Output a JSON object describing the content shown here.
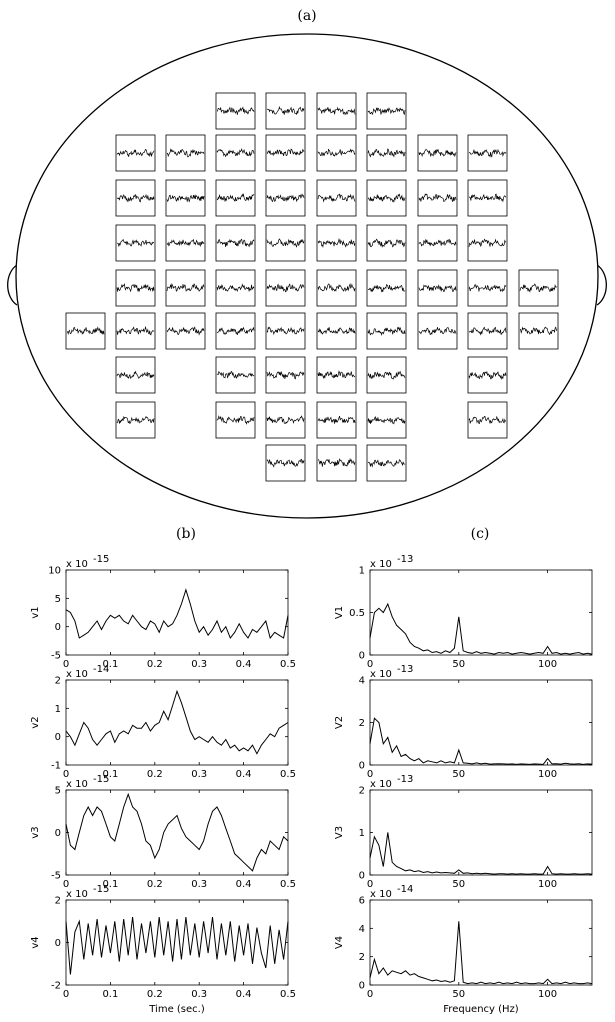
{
  "figure": {
    "panel_a": "(a)",
    "panel_b": "(b)",
    "panel_c": "(c)"
  },
  "chart_data": [
    {
      "type": "line",
      "ylabel": "v1",
      "multiplier": {
        "base": "x 10",
        "exponent": "-15"
      },
      "color": "#000",
      "x": [
        0,
        0.01,
        0.02,
        0.03,
        0.04,
        0.05,
        0.06,
        0.07,
        0.08,
        0.09,
        0.1,
        0.11,
        0.12,
        0.13,
        0.14,
        0.15,
        0.16,
        0.17,
        0.18,
        0.19,
        0.2,
        0.21,
        0.22,
        0.23,
        0.24,
        0.25,
        0.26,
        0.27,
        0.28,
        0.29,
        0.3,
        0.31,
        0.32,
        0.33,
        0.34,
        0.35,
        0.36,
        0.37,
        0.38,
        0.39,
        0.4,
        0.41,
        0.42,
        0.43,
        0.44,
        0.45,
        0.46,
        0.47,
        0.48,
        0.49,
        0.5
      ],
      "values": [
        3,
        2.5,
        1,
        -2,
        -1.5,
        -1,
        0,
        1,
        -0.5,
        1,
        2,
        1.5,
        2,
        1,
        0.5,
        2,
        1,
        0,
        -0.5,
        1,
        0.5,
        -1,
        1,
        0,
        0.5,
        2,
        4,
        6.5,
        4,
        1,
        -1,
        0,
        -1.5,
        -0.5,
        1,
        -1,
        0,
        -2,
        -1,
        0.5,
        -1,
        -2,
        -0.5,
        -1,
        0,
        1,
        -2,
        -1,
        -1.5,
        -2,
        2
      ],
      "xlim": [
        0,
        0.5
      ],
      "xticks": [
        0,
        0.1,
        0.2,
        0.3,
        0.4,
        0.5
      ],
      "ylim": [
        -5,
        10
      ],
      "yticks": [
        -5,
        0,
        5,
        10
      ]
    },
    {
      "type": "line",
      "ylabel": "v2",
      "multiplier": {
        "base": "x 10",
        "exponent": "-14"
      },
      "color": "#000",
      "x": [
        0,
        0.01,
        0.02,
        0.03,
        0.04,
        0.05,
        0.06,
        0.07,
        0.08,
        0.09,
        0.1,
        0.11,
        0.12,
        0.13,
        0.14,
        0.15,
        0.16,
        0.17,
        0.18,
        0.19,
        0.2,
        0.21,
        0.22,
        0.23,
        0.24,
        0.25,
        0.26,
        0.27,
        0.28,
        0.29,
        0.3,
        0.31,
        0.32,
        0.33,
        0.34,
        0.35,
        0.36,
        0.37,
        0.38,
        0.39,
        0.4,
        0.41,
        0.42,
        0.43,
        0.44,
        0.45,
        0.46,
        0.47,
        0.48,
        0.49,
        0.5
      ],
      "values": [
        0.2,
        0,
        -0.3,
        0.1,
        0.5,
        0.3,
        -0.1,
        -0.3,
        -0.1,
        0.1,
        0.2,
        -0.2,
        0.1,
        0.2,
        0.1,
        0.4,
        0.3,
        0.3,
        0.5,
        0.2,
        0.4,
        0.5,
        0.9,
        0.6,
        1.1,
        1.6,
        1.2,
        0.7,
        0.2,
        -0.1,
        0,
        -0.1,
        -0.2,
        0,
        -0.2,
        -0.3,
        -0.1,
        -0.4,
        -0.3,
        -0.5,
        -0.4,
        -0.5,
        -0.3,
        -0.6,
        -0.3,
        -0.1,
        0.1,
        0,
        0.3,
        0.4,
        0.5
      ],
      "xlim": [
        0,
        0.5
      ],
      "xticks": [
        0,
        0.1,
        0.2,
        0.3,
        0.4,
        0.5
      ],
      "ylim": [
        -1,
        2
      ],
      "yticks": [
        -1,
        0,
        1,
        2
      ]
    },
    {
      "type": "line",
      "ylabel": "v3",
      "multiplier": {
        "base": "x 10",
        "exponent": "-15"
      },
      "color": "#000",
      "x": [
        0,
        0.01,
        0.02,
        0.03,
        0.04,
        0.05,
        0.06,
        0.07,
        0.08,
        0.09,
        0.1,
        0.11,
        0.12,
        0.13,
        0.14,
        0.15,
        0.16,
        0.17,
        0.18,
        0.19,
        0.2,
        0.21,
        0.22,
        0.23,
        0.24,
        0.25,
        0.26,
        0.27,
        0.28,
        0.29,
        0.3,
        0.31,
        0.32,
        0.33,
        0.34,
        0.35,
        0.36,
        0.37,
        0.38,
        0.39,
        0.4,
        0.41,
        0.42,
        0.43,
        0.44,
        0.45,
        0.46,
        0.47,
        0.48,
        0.49,
        0.5
      ],
      "values": [
        1,
        -1.5,
        -2,
        0,
        2,
        3,
        2,
        3,
        2.5,
        1,
        -0.5,
        -1,
        1,
        3,
        4.5,
        3,
        2.5,
        1,
        -1,
        -1.5,
        -3,
        -2,
        0,
        1,
        1.5,
        2,
        0.5,
        -0.5,
        -1,
        -1.5,
        -2,
        -1,
        1,
        2.5,
        3,
        2,
        0.5,
        -1,
        -2.5,
        -3,
        -3.5,
        -4,
        -4.5,
        -3,
        -2,
        -2.5,
        -1,
        -1.5,
        -2,
        -0.5,
        -1
      ],
      "xlim": [
        0,
        0.5
      ],
      "xticks": [
        0,
        0.1,
        0.2,
        0.3,
        0.4,
        0.5
      ],
      "ylim": [
        -5,
        5
      ],
      "yticks": [
        -5,
        0,
        5
      ]
    },
    {
      "type": "line",
      "ylabel": "v4",
      "xlabel": "Time (sec.)",
      "multiplier": {
        "base": "x 10",
        "exponent": "-15"
      },
      "color": "#000",
      "x": [
        0,
        0.01,
        0.02,
        0.03,
        0.04,
        0.05,
        0.06,
        0.07,
        0.08,
        0.09,
        0.1,
        0.11,
        0.12,
        0.13,
        0.14,
        0.15,
        0.16,
        0.17,
        0.18,
        0.19,
        0.2,
        0.21,
        0.22,
        0.23,
        0.24,
        0.25,
        0.26,
        0.27,
        0.28,
        0.29,
        0.3,
        0.31,
        0.32,
        0.33,
        0.34,
        0.35,
        0.36,
        0.37,
        0.38,
        0.39,
        0.4,
        0.41,
        0.42,
        0.43,
        0.44,
        0.45,
        0.46,
        0.47,
        0.48,
        0.49,
        0.5
      ],
      "values": [
        1,
        -1.5,
        0.5,
        1,
        -0.8,
        0.9,
        -0.6,
        1.1,
        -0.7,
        0.8,
        -0.5,
        1,
        -0.9,
        1.1,
        -0.6,
        1.2,
        -0.8,
        0.9,
        -0.5,
        1,
        -0.7,
        1.2,
        -0.6,
        1,
        -0.9,
        1.1,
        -0.8,
        1.2,
        -0.6,
        0.9,
        -0.7,
        1,
        -0.5,
        1.2,
        -0.8,
        0.9,
        -0.6,
        1,
        -0.9,
        0.8,
        -0.6,
        0.9,
        -1,
        0.7,
        -0.5,
        -1.2,
        0.8,
        -1,
        0.6,
        -0.8,
        1
      ],
      "xlim": [
        0,
        0.5
      ],
      "xticks": [
        0,
        0.1,
        0.2,
        0.3,
        0.4,
        0.5
      ],
      "ylim": [
        -2,
        2
      ],
      "yticks": [
        -2,
        0,
        2
      ]
    },
    {
      "type": "line",
      "ylabel": "V1",
      "multiplier": {
        "base": "x 10",
        "exponent": "-13"
      },
      "color": "#000",
      "x": [
        0,
        2.5,
        5,
        7.5,
        10,
        12.5,
        15,
        17.5,
        20,
        22.5,
        25,
        27.5,
        30,
        32.5,
        35,
        37.5,
        40,
        42.5,
        45,
        47.5,
        50,
        52.5,
        55,
        57.5,
        60,
        62.5,
        65,
        67.5,
        70,
        72.5,
        75,
        77.5,
        80,
        82.5,
        85,
        87.5,
        90,
        92.5,
        95,
        97.5,
        100,
        102.5,
        105,
        107.5,
        110,
        112.5,
        115,
        117.5,
        120,
        122.5,
        125
      ],
      "values": [
        0.2,
        0.5,
        0.55,
        0.5,
        0.6,
        0.45,
        0.35,
        0.3,
        0.25,
        0.15,
        0.1,
        0.08,
        0.05,
        0.06,
        0.03,
        0.04,
        0.02,
        0.05,
        0.03,
        0.08,
        0.45,
        0.05,
        0.03,
        0.02,
        0.04,
        0.02,
        0.03,
        0.02,
        0.01,
        0.03,
        0.02,
        0.03,
        0.01,
        0.02,
        0.03,
        0.02,
        0.01,
        0.02,
        0.03,
        0.02,
        0.1,
        0.02,
        0.03,
        0.01,
        0.02,
        0.01,
        0.02,
        0.03,
        0.01,
        0.02,
        0.01
      ],
      "xlim": [
        0,
        125
      ],
      "xticks": [
        0,
        50,
        100
      ],
      "ylim": [
        0,
        1
      ],
      "yticks": [
        0,
        0.5,
        1
      ]
    },
    {
      "type": "line",
      "ylabel": "V2",
      "multiplier": {
        "base": "x 10",
        "exponent": "-13"
      },
      "color": "#000",
      "x": [
        0,
        2.5,
        5,
        7.5,
        10,
        12.5,
        15,
        17.5,
        20,
        22.5,
        25,
        27.5,
        30,
        32.5,
        35,
        37.5,
        40,
        42.5,
        45,
        47.5,
        50,
        52.5,
        55,
        57.5,
        60,
        62.5,
        65,
        67.5,
        70,
        72.5,
        75,
        77.5,
        80,
        82.5,
        85,
        87.5,
        90,
        92.5,
        95,
        97.5,
        100,
        102.5,
        105,
        107.5,
        110,
        112.5,
        115,
        117.5,
        120,
        122.5,
        125
      ],
      "values": [
        1,
        2.2,
        2,
        1,
        1.3,
        0.6,
        0.9,
        0.4,
        0.5,
        0.3,
        0.2,
        0.3,
        0.1,
        0.2,
        0.15,
        0.1,
        0.2,
        0.1,
        0.15,
        0.1,
        0.7,
        0.1,
        0.08,
        0.05,
        0.1,
        0.05,
        0.08,
        0.04,
        0.05,
        0.06,
        0.05,
        0.04,
        0.05,
        0.03,
        0.05,
        0.04,
        0.03,
        0.05,
        0.04,
        0.03,
        0.3,
        0.05,
        0.06,
        0.04,
        0.08,
        0.05,
        0.04,
        0.06,
        0.03,
        0.05,
        0.04
      ],
      "xlim": [
        0,
        125
      ],
      "xticks": [
        0,
        50,
        100
      ],
      "ylim": [
        0,
        4
      ],
      "yticks": [
        0,
        2,
        4
      ]
    },
    {
      "type": "line",
      "ylabel": "V3",
      "multiplier": {
        "base": "x 10",
        "exponent": "-13"
      },
      "color": "#000",
      "x": [
        0,
        2.5,
        5,
        7.5,
        10,
        12.5,
        15,
        17.5,
        20,
        22.5,
        25,
        27.5,
        30,
        32.5,
        35,
        37.5,
        40,
        42.5,
        45,
        47.5,
        50,
        52.5,
        55,
        57.5,
        60,
        62.5,
        65,
        67.5,
        70,
        72.5,
        75,
        77.5,
        80,
        82.5,
        85,
        87.5,
        90,
        92.5,
        95,
        97.5,
        100,
        102.5,
        105,
        107.5,
        110,
        112.5,
        115,
        117.5,
        120,
        122.5,
        125
      ],
      "values": [
        0.4,
        0.9,
        0.7,
        0.2,
        1,
        0.3,
        0.2,
        0.15,
        0.1,
        0.12,
        0.08,
        0.1,
        0.06,
        0.08,
        0.05,
        0.07,
        0.05,
        0.06,
        0.05,
        0.04,
        0.12,
        0.04,
        0.05,
        0.03,
        0.04,
        0.03,
        0.04,
        0.03,
        0.02,
        0.03,
        0.03,
        0.02,
        0.03,
        0.02,
        0.03,
        0.02,
        0.02,
        0.03,
        0.02,
        0.02,
        0.2,
        0.03,
        0.02,
        0.03,
        0.02,
        0.02,
        0.03,
        0.02,
        0.02,
        0.03,
        0.02
      ],
      "xlim": [
        0,
        125
      ],
      "xticks": [
        0,
        50,
        100
      ],
      "ylim": [
        0,
        2
      ],
      "yticks": [
        0,
        1,
        2
      ]
    },
    {
      "type": "line",
      "ylabel": "V4",
      "xlabel": "Frequency (Hz)",
      "multiplier": {
        "base": "x 10",
        "exponent": "-14"
      },
      "color": "#000",
      "x": [
        0,
        2.5,
        5,
        7.5,
        10,
        12.5,
        15,
        17.5,
        20,
        22.5,
        25,
        27.5,
        30,
        32.5,
        35,
        37.5,
        40,
        42.5,
        45,
        47.5,
        50,
        52.5,
        55,
        57.5,
        60,
        62.5,
        65,
        67.5,
        70,
        72.5,
        75,
        77.5,
        80,
        82.5,
        85,
        87.5,
        90,
        92.5,
        95,
        97.5,
        100,
        102.5,
        105,
        107.5,
        110,
        112.5,
        115,
        117.5,
        120,
        122.5,
        125
      ],
      "values": [
        0.5,
        1.8,
        0.8,
        1.2,
        0.7,
        1,
        0.9,
        0.8,
        1,
        0.7,
        0.8,
        0.6,
        0.5,
        0.4,
        0.3,
        0.35,
        0.25,
        0.3,
        0.2,
        0.3,
        4.5,
        0.2,
        0.1,
        0.15,
        0.1,
        0.2,
        0.1,
        0.15,
        0.1,
        0.2,
        0.1,
        0.15,
        0.1,
        0.2,
        0.1,
        0.15,
        0.1,
        0.1,
        0.15,
        0.1,
        0.4,
        0.1,
        0.15,
        0.1,
        0.2,
        0.1,
        0.15,
        0.1,
        0.1,
        0.15,
        0.1
      ],
      "xlim": [
        0,
        125
      ],
      "xticks": [
        0,
        50,
        100
      ],
      "ylim": [
        0,
        6
      ],
      "yticks": [
        0,
        2,
        4,
        6
      ]
    }
  ]
}
